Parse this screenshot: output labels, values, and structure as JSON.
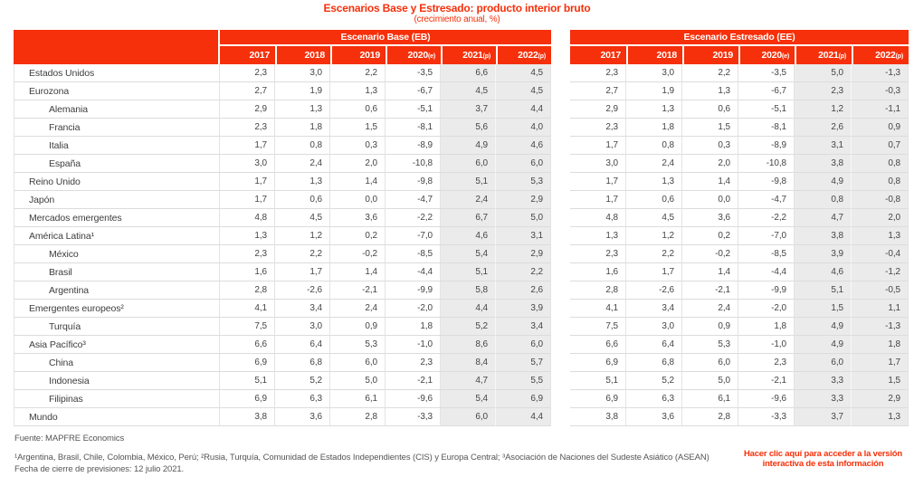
{
  "title": "Escenarios Base y Estresado: producto interior bruto",
  "subtitle": "(crecimiento anual, %)",
  "colors": {
    "accent_red": "#f5300a",
    "shaded_column_bg": "#ebebeb"
  },
  "base_table": {
    "header": "Escenario Base (EB)"
  },
  "stressed_table": {
    "header": "Escenario Estresado (EE)"
  },
  "columns": [
    {
      "label": "2017",
      "suffix": ""
    },
    {
      "label": "2018",
      "suffix": ""
    },
    {
      "label": "2019",
      "suffix": ""
    },
    {
      "label": "2020",
      "suffix": "(e)"
    },
    {
      "label": "2021",
      "suffix": "(p)"
    },
    {
      "label": "2022",
      "suffix": "(p)"
    }
  ],
  "rows": [
    {
      "label": "Estados Unidos",
      "indent": false,
      "eb": [
        "2,3",
        "3,0",
        "2,2",
        "-3,5",
        "6,6",
        "4,5"
      ],
      "ee": [
        "2,3",
        "3,0",
        "2,2",
        "-3,5",
        "5,0",
        "-1,3"
      ]
    },
    {
      "label": "Eurozona",
      "indent": false,
      "eb": [
        "2,7",
        "1,9",
        "1,3",
        "-6,7",
        "4,5",
        "4,5"
      ],
      "ee": [
        "2,7",
        "1,9",
        "1,3",
        "-6,7",
        "2,3",
        "-0,3"
      ]
    },
    {
      "label": "Alemania",
      "indent": true,
      "eb": [
        "2,9",
        "1,3",
        "0,6",
        "-5,1",
        "3,7",
        "4,4"
      ],
      "ee": [
        "2,9",
        "1,3",
        "0,6",
        "-5,1",
        "1,2",
        "-1,1"
      ]
    },
    {
      "label": "Francia",
      "indent": true,
      "eb": [
        "2,3",
        "1,8",
        "1,5",
        "-8,1",
        "5,6",
        "4,0"
      ],
      "ee": [
        "2,3",
        "1,8",
        "1,5",
        "-8,1",
        "2,6",
        "0,9"
      ]
    },
    {
      "label": "Italia",
      "indent": true,
      "eb": [
        "1,7",
        "0,8",
        "0,3",
        "-8,9",
        "4,9",
        "4,6"
      ],
      "ee": [
        "1,7",
        "0,8",
        "0,3",
        "-8,9",
        "3,1",
        "0,7"
      ]
    },
    {
      "label": "España",
      "indent": true,
      "eb": [
        "3,0",
        "2,4",
        "2,0",
        "-10,8",
        "6,0",
        "6,0"
      ],
      "ee": [
        "3,0",
        "2,4",
        "2,0",
        "-10,8",
        "3,8",
        "0,8"
      ]
    },
    {
      "label": "Reino Unido",
      "indent": false,
      "eb": [
        "1,7",
        "1,3",
        "1,4",
        "-9,8",
        "5,1",
        "5,3"
      ],
      "ee": [
        "1,7",
        "1,3",
        "1,4",
        "-9,8",
        "4,9",
        "0,8"
      ]
    },
    {
      "label": "Japón",
      "indent": false,
      "eb": [
        "1,7",
        "0,6",
        "0,0",
        "-4,7",
        "2,4",
        "2,9"
      ],
      "ee": [
        "1,7",
        "0,6",
        "0,0",
        "-4,7",
        "0,8",
        "-0,8"
      ]
    },
    {
      "label": "Mercados emergentes",
      "indent": false,
      "eb": [
        "4,8",
        "4,5",
        "3,6",
        "-2,2",
        "6,7",
        "5,0"
      ],
      "ee": [
        "4,8",
        "4,5",
        "3,6",
        "-2,2",
        "4,7",
        "2,0"
      ]
    },
    {
      "label": "América Latina¹",
      "indent": false,
      "eb": [
        "1,3",
        "1,2",
        "0,2",
        "-7,0",
        "4,6",
        "3,1"
      ],
      "ee": [
        "1,3",
        "1,2",
        "0,2",
        "-7,0",
        "3,8",
        "1,3"
      ]
    },
    {
      "label": "México",
      "indent": true,
      "eb": [
        "2,3",
        "2,2",
        "-0,2",
        "-8,5",
        "5,4",
        "2,9"
      ],
      "ee": [
        "2,3",
        "2,2",
        "-0,2",
        "-8,5",
        "3,9",
        "-0,4"
      ]
    },
    {
      "label": "Brasil",
      "indent": true,
      "eb": [
        "1,6",
        "1,7",
        "1,4",
        "-4,4",
        "5,1",
        "2,2"
      ],
      "ee": [
        "1,6",
        "1,7",
        "1,4",
        "-4,4",
        "4,6",
        "-1,2"
      ]
    },
    {
      "label": "Argentina",
      "indent": true,
      "eb": [
        "2,8",
        "-2,6",
        "-2,1",
        "-9,9",
        "5,8",
        "2,6"
      ],
      "ee": [
        "2,8",
        "-2,6",
        "-2,1",
        "-9,9",
        "5,1",
        "-0,5"
      ]
    },
    {
      "label": "Emergentes europeos²",
      "indent": false,
      "eb": [
        "4,1",
        "3,4",
        "2,4",
        "-2,0",
        "4,4",
        "3,9"
      ],
      "ee": [
        "4,1",
        "3,4",
        "2,4",
        "-2,0",
        "1,5",
        "1,1"
      ]
    },
    {
      "label": "Turquía",
      "indent": true,
      "eb": [
        "7,5",
        "3,0",
        "0,9",
        "1,8",
        "5,2",
        "3,4"
      ],
      "ee": [
        "7,5",
        "3,0",
        "0,9",
        "1,8",
        "4,9",
        "-1,3"
      ]
    },
    {
      "label": "Asia Pacífico³",
      "indent": false,
      "eb": [
        "6,6",
        "6,4",
        "5,3",
        "-1,0",
        "8,6",
        "6,0"
      ],
      "ee": [
        "6,6",
        "6,4",
        "5,3",
        "-1,0",
        "4,9",
        "1,8"
      ]
    },
    {
      "label": "China",
      "indent": true,
      "eb": [
        "6,9",
        "6,8",
        "6,0",
        "2,3",
        "8,4",
        "5,7"
      ],
      "ee": [
        "6,9",
        "6,8",
        "6,0",
        "2,3",
        "6,0",
        "1,7"
      ]
    },
    {
      "label": "Indonesia",
      "indent": true,
      "eb": [
        "5,1",
        "5,2",
        "5,0",
        "-2,1",
        "4,7",
        "5,5"
      ],
      "ee": [
        "5,1",
        "5,2",
        "5,0",
        "-2,1",
        "3,3",
        "1,5"
      ]
    },
    {
      "label": "Filipinas",
      "indent": true,
      "eb": [
        "6,9",
        "6,3",
        "6,1",
        "-9,6",
        "5,4",
        "6,9"
      ],
      "ee": [
        "6,9",
        "6,3",
        "6,1",
        "-9,6",
        "3,3",
        "2,9"
      ]
    },
    {
      "label": "Mundo",
      "indent": false,
      "eb": [
        "3,8",
        "3,6",
        "2,8",
        "-3,3",
        "6,0",
        "4,4"
      ],
      "ee": [
        "3,8",
        "3,6",
        "2,8",
        "-3,3",
        "3,7",
        "1,3"
      ]
    }
  ],
  "footer": {
    "source": "Fuente: MAPFRE Economics",
    "footnote": "¹Argentina, Brasil, Chile, Colombia, México, Perú; ²Rusia, Turquía, Comunidad de Estados Independientes (CIS) y Europa Central; ³Asociación de Naciones del Sudeste Asiático (ASEAN)",
    "closing_date": "Fecha de cierre de previsiones: 12 julio 2021.",
    "interactive_link": "Hacer clic aquí para acceder a la versión interactiva de esta información"
  }
}
